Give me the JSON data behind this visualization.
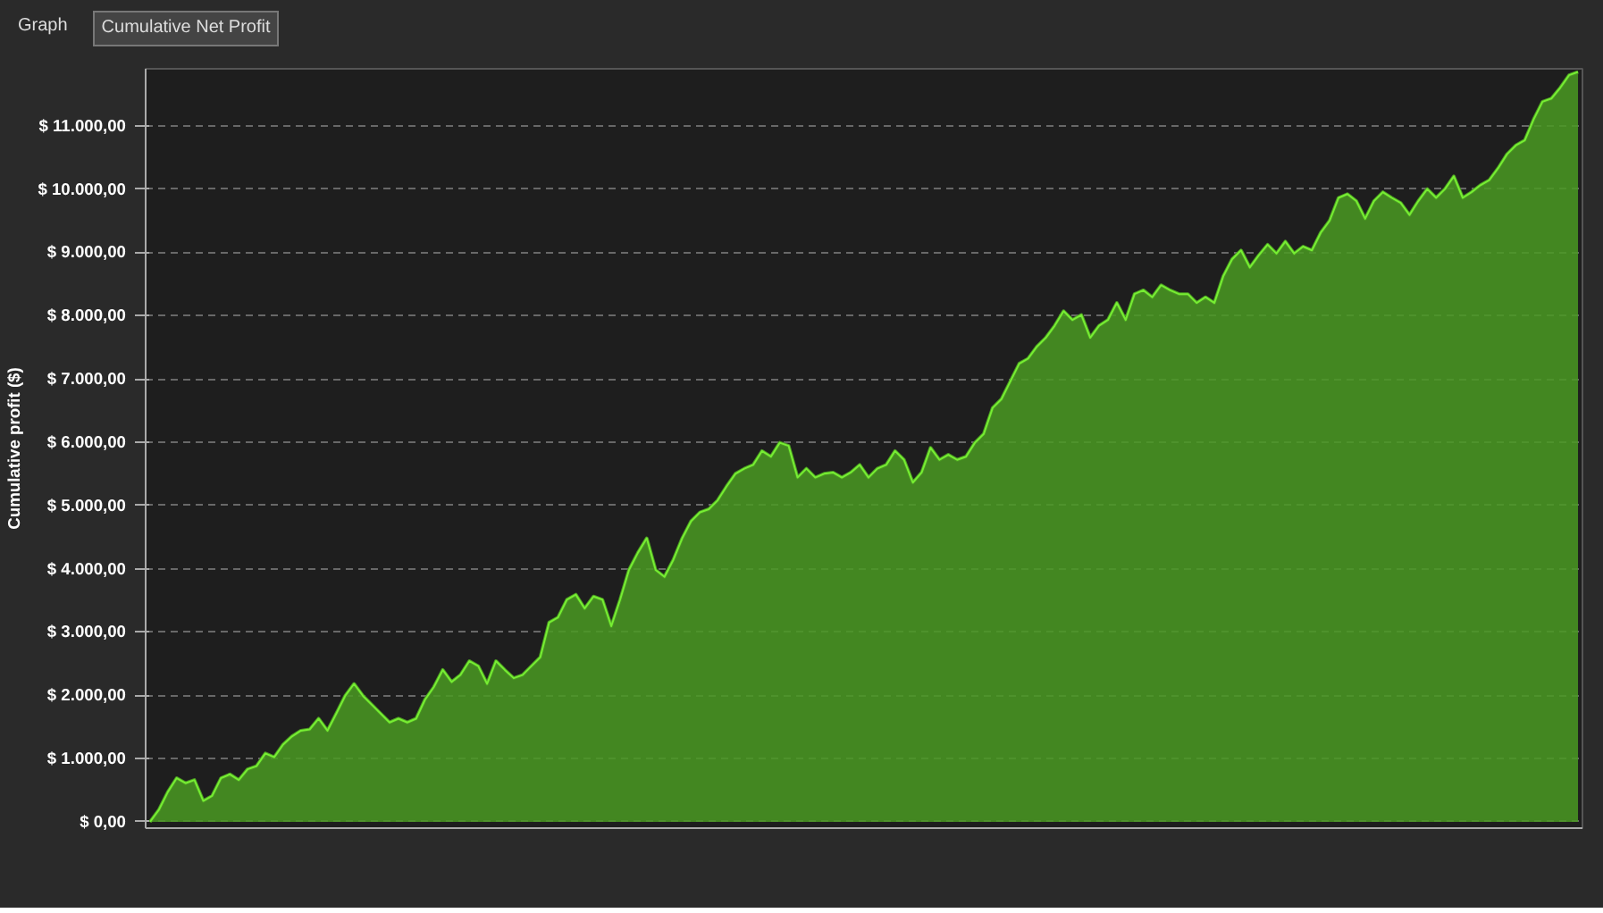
{
  "chart_data": {
    "type": "area",
    "ylabel": "Cumulative profit ($)",
    "annotations": [
      "Graph",
      "Cumulative Net Profit"
    ],
    "categories": [
      null,
      null,
      null,
      null,
      null,
      null,
      null,
      null,
      null,
      null,
      null,
      null,
      null,
      null,
      null,
      null,
      null,
      null,
      null,
      null,
      null,
      null,
      null,
      null,
      null,
      null,
      null,
      null,
      null,
      null,
      null,
      null,
      null,
      null,
      null,
      null,
      null,
      null,
      null,
      null,
      null,
      null,
      null,
      null,
      null,
      null,
      null,
      null,
      null,
      null,
      null,
      null,
      null,
      null,
      null,
      null,
      null,
      null,
      null,
      null,
      null,
      null,
      null,
      null,
      null,
      null,
      null,
      null,
      null,
      null,
      null,
      null,
      null,
      null,
      null,
      null,
      null,
      null,
      null,
      null,
      null,
      null,
      null,
      null,
      null,
      null,
      null,
      null,
      null,
      null,
      null,
      null,
      null,
      null,
      null,
      null,
      null,
      null,
      null,
      null,
      null,
      null,
      null,
      null,
      null,
      null,
      null,
      null,
      null,
      null,
      null,
      null,
      null,
      null,
      null,
      null,
      null,
      null,
      null,
      null,
      null,
      null,
      null,
      null,
      null,
      null,
      null,
      null,
      null,
      null,
      null,
      null,
      null,
      null,
      null,
      null,
      null,
      null,
      null,
      null,
      null,
      null,
      null,
      null,
      null,
      null,
      null,
      null,
      null,
      null,
      null,
      null,
      null,
      null,
      null,
      null,
      null,
      null,
      null,
      null,
      null,
      null
    ],
    "series": [
      {
        "color": "#4a9a22",
        "values": [
          0,
          190,
          470,
          690,
          610,
          660,
          330,
          410,
          690,
          750,
          660,
          830,
          880,
          1080,
          1020,
          1220,
          1350,
          1440,
          1460,
          1630,
          1440,
          1710,
          1990,
          2180,
          1990,
          1850,
          1710,
          1570,
          1630,
          1570,
          1630,
          1930,
          2130,
          2400,
          2210,
          2320,
          2540,
          2460,
          2180,
          2540,
          2400,
          2270,
          2320,
          2460,
          2600,
          3150,
          3230,
          3510,
          3590,
          3370,
          3560,
          3510,
          3090,
          3510,
          3980,
          4250,
          4480,
          3980,
          3870,
          4140,
          4480,
          4750,
          4890,
          4940,
          5080,
          5300,
          5500,
          5580,
          5640,
          5860,
          5770,
          5990,
          5940,
          5440,
          5580,
          5440,
          5500,
          5520,
          5440,
          5520,
          5640,
          5440,
          5580,
          5640,
          5860,
          5720,
          5360,
          5520,
          5910,
          5720,
          5800,
          5720,
          5770,
          5990,
          6130,
          6540,
          6680,
          6960,
          7240,
          7320,
          7510,
          7650,
          7840,
          8070,
          7930,
          8010,
          7650,
          7840,
          7930,
          8200,
          7930,
          8340,
          8400,
          8290,
          8480,
          8400,
          8340,
          8340,
          8200,
          8290,
          8200,
          8620,
          8890,
          9030,
          8760,
          8950,
          9120,
          8980,
          9170,
          8980,
          9090,
          9030,
          9310,
          9500,
          9860,
          9920,
          9810,
          9530,
          9810,
          9950,
          9860,
          9780,
          9590,
          9810,
          10000,
          9860,
          10000,
          10200,
          9860,
          9950,
          10060,
          10140,
          10330,
          10550,
          10690,
          10770,
          11100,
          11380,
          11430,
          11600,
          11800,
          11850
        ]
      }
    ],
    "ylim": [
      -100,
      11900
    ],
    "yticks": [
      {
        "value": 0,
        "label": "$ 0,00"
      },
      {
        "value": 1000,
        "label": "$ 1.000,00"
      },
      {
        "value": 2000,
        "label": "$ 2.000,00"
      },
      {
        "value": 3000,
        "label": "$ 3.000,00"
      },
      {
        "value": 4000,
        "label": "$ 4.000,00"
      },
      {
        "value": 5000,
        "label": "$ 5.000,00"
      },
      {
        "value": 6000,
        "label": "$ 6.000,00"
      },
      {
        "value": 7000,
        "label": "$ 7.000,00"
      },
      {
        "value": 8000,
        "label": "$ 8.000,00"
      },
      {
        "value": 9000,
        "label": "$ 9.000,00"
      },
      {
        "value": 10000,
        "label": "$ 10.000,00"
      },
      {
        "value": 11000,
        "label": "$ 11.000,00"
      }
    ],
    "grid": "y",
    "tick_labels": "y"
  }
}
